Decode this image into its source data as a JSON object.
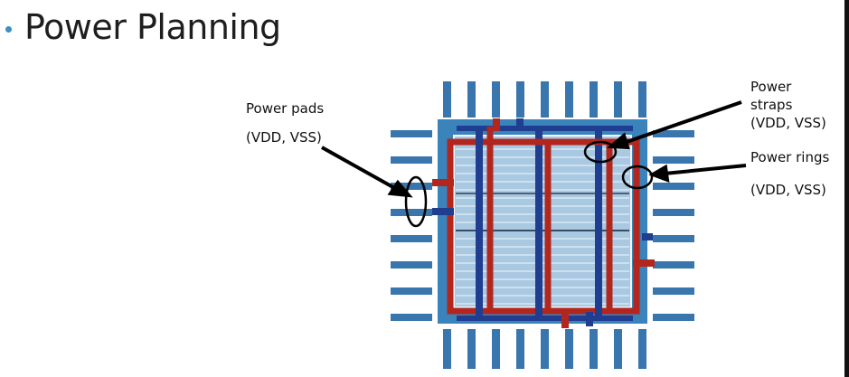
{
  "slide": {
    "bullet_color": "#3b8fc4",
    "title": "Power Planning"
  },
  "labels": {
    "pads_line1": "Power pads",
    "pads_line2": "(VDD, VSS)",
    "straps_line1": "Power",
    "straps_line2": "straps",
    "straps_line3": "(VDD, VSS)",
    "rings_line1": "Power rings",
    "rings_line2": "(VDD, VSS)"
  },
  "colors": {
    "die": "#3a83bb",
    "core": "#a9c8e2",
    "core_border": "#f2f6fa",
    "pad": "#3876ad",
    "ring_red": "#b3261e",
    "strap_blue": "#1f3e8f",
    "callout": "#000000"
  }
}
